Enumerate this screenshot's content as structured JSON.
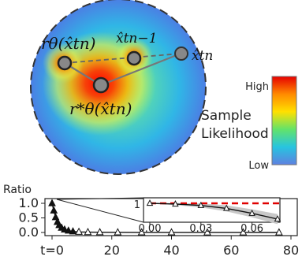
{
  "disk": {
    "label_r_theta": "rθ(x̂tn)",
    "label_r_theta_star": "r*θ(x̂tn)",
    "label_x_prev": "x̂tn−1",
    "label_x_curr": "x̂tn"
  },
  "colorbar": {
    "high_label": "High",
    "low_label": "Low",
    "title_line1": "Sample",
    "title_line2": "Likelihood",
    "colors": [
      "#e60000",
      "#ff8a00",
      "#ffe000",
      "#62e36a",
      "#27c4e0",
      "#5f80e0"
    ]
  },
  "chart_data": {
    "type": "line",
    "ylabel": "Ratio",
    "xlabel_prefix": "t=",
    "xlim": [
      0,
      80
    ],
    "ylim": [
      0,
      1
    ],
    "xticks": [
      0,
      20,
      40,
      60,
      80
    ],
    "xtick_labels": [
      "t=0",
      "20",
      "40",
      "60",
      "80"
    ],
    "yticks": [
      0.0,
      0.5,
      1.0
    ],
    "ytick_labels": [
      "0.0",
      "0.5",
      "1.0"
    ],
    "series": [
      {
        "x": [
          0,
          0.6,
          1.2,
          1.8,
          2.4,
          3.2,
          4.2,
          5.5,
          7,
          9,
          12,
          16,
          22,
          30,
          40,
          52,
          64,
          76
        ],
        "y": [
          1.0,
          0.75,
          0.52,
          0.36,
          0.25,
          0.16,
          0.1,
          0.06,
          0.035,
          0.02,
          0.012,
          0.008,
          0.005,
          0.004,
          0.003,
          0.002,
          0.002,
          0.001
        ]
      }
    ],
    "inset": {
      "xlim": [
        0,
        0.075
      ],
      "xticks": [
        0.0,
        0.03,
        0.06
      ],
      "xtick_labels": [
        "0.00",
        "0.03",
        "0.06"
      ],
      "y_reference": 1,
      "y_reference_label": "1",
      "series": {
        "x": [
          0.0,
          0.015,
          0.03,
          0.045,
          0.06,
          0.075
        ],
        "y": [
          1.0,
          0.995,
          0.985,
          0.965,
          0.93,
          0.89
        ]
      },
      "reference_color": "#e00000"
    }
  }
}
